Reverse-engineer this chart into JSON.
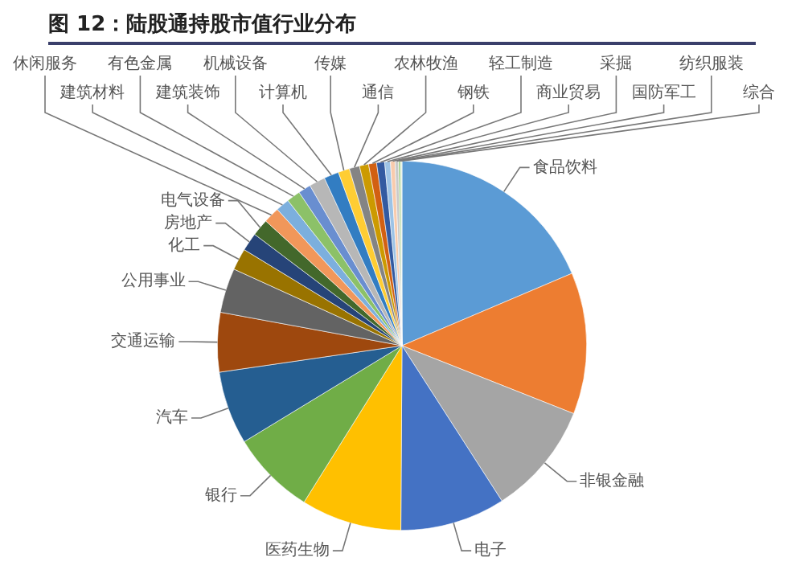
{
  "chart_data": {
    "type": "pie",
    "title": "图 12：陆股通持股市值行业分布",
    "categories": [
      "食品饮料",
      null,
      "非银金融",
      "电子",
      "医药生物",
      "银行",
      "汽车",
      "交通运输",
      "公用事业",
      "化工",
      "房地产",
      "电气设备",
      "休闲服务",
      "建筑材料",
      "有色金属",
      "建筑装饰",
      "机械设备",
      "计算机",
      "传媒",
      "通信",
      "农林牧渔",
      "钢铁",
      "轻工制造",
      "商业贸易",
      "采掘",
      "国防军工",
      "纺织服装",
      "综合"
    ],
    "values": [
      18.6,
      12.4,
      9.9,
      9.2,
      8.8,
      7.4,
      6.4,
      5.2,
      3.9,
      1.9,
      1.6,
      1.5,
      1.4,
      1.2,
      1.2,
      1.1,
      1.4,
      1.3,
      1.0,
      0.9,
      0.8,
      0.7,
      0.7,
      0.5,
      0.4,
      0.3,
      0.2,
      0.1
    ],
    "colors": [
      "#5b9bd5",
      "#ed7d31",
      "#a5a5a5",
      "#4472c4",
      "#ffc000",
      "#70ad47",
      "#255e91",
      "#9e480e",
      "#636363",
      "#997300",
      "#264478",
      "#43682b",
      "#f1975a",
      "#7cafdd",
      "#8cc168",
      "#698ed0",
      "#b7b7b7",
      "#327dc2",
      "#ffcd33",
      "#848484",
      "#cc9a00",
      "#d26012",
      "#335aa1",
      "#9dc3e6",
      "#f8cbad",
      "#c9c9c9",
      "#a9d18e",
      "#e2efda"
    ],
    "legend": false
  }
}
